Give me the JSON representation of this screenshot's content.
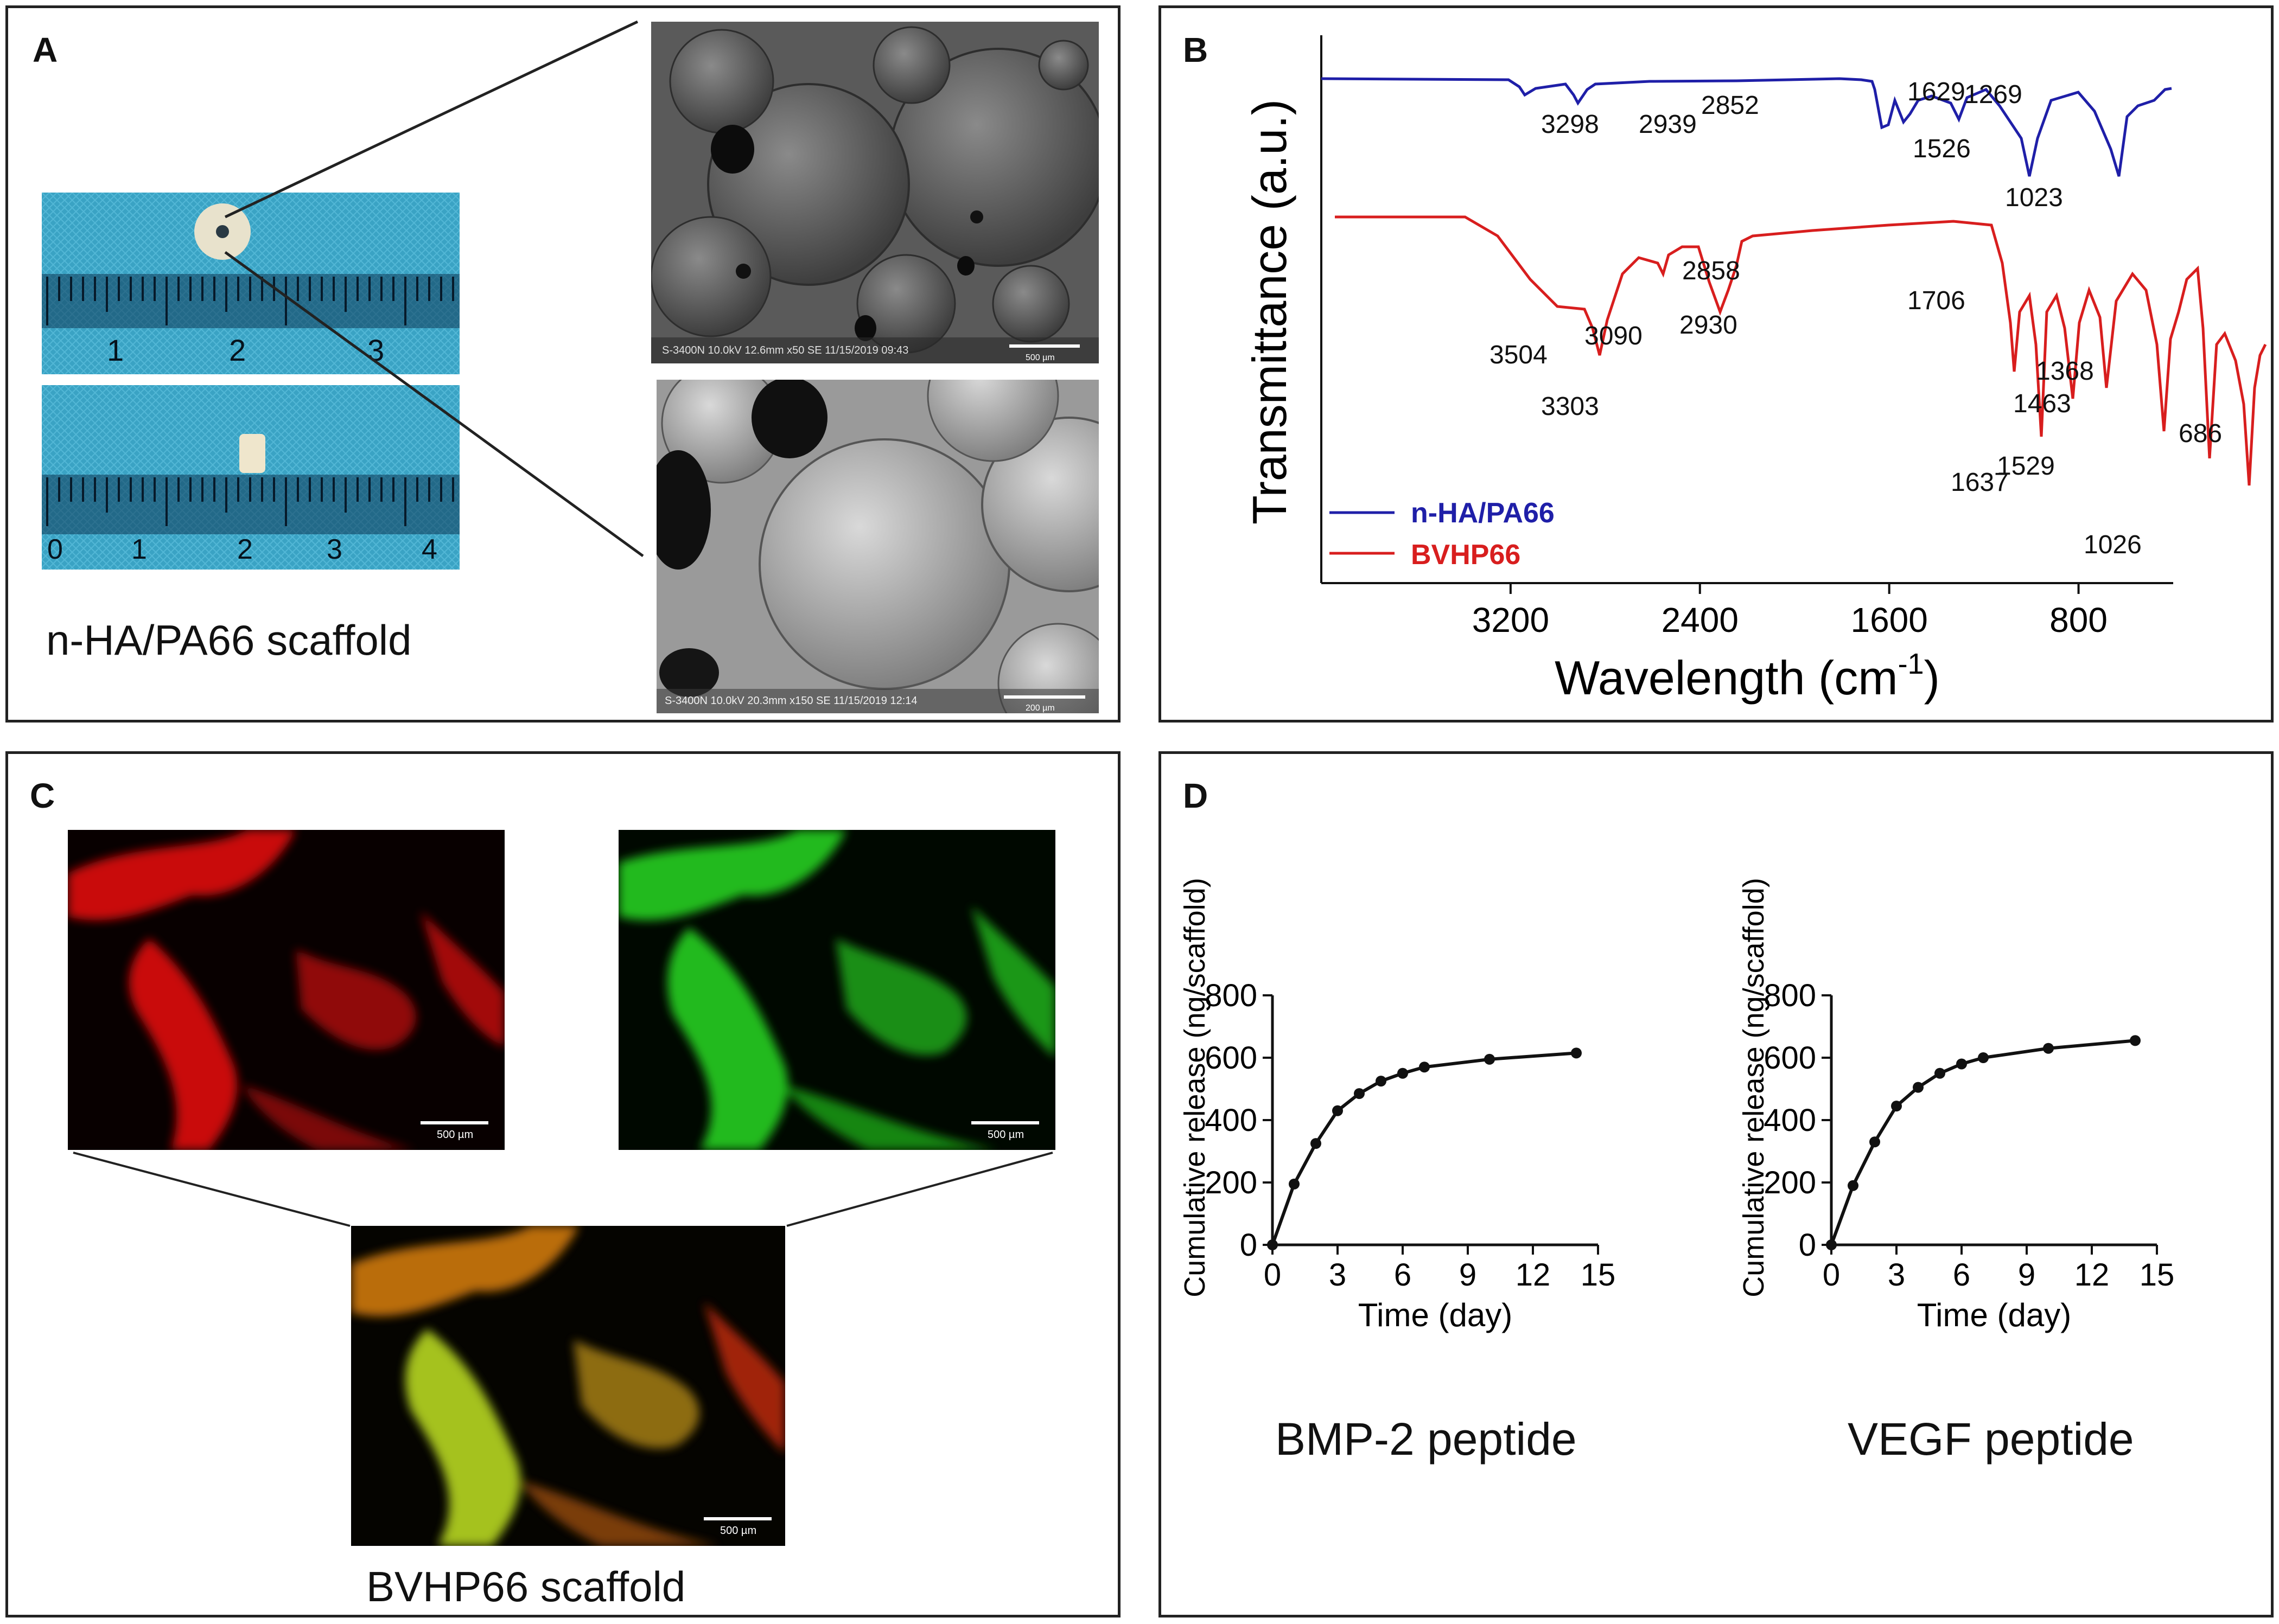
{
  "panels": {
    "a": {
      "label": "A",
      "caption": "n-HA/PA66 scaffold",
      "ruler_top_labels": [
        "1",
        "2",
        "3"
      ],
      "ruler_bottom_labels": [
        "0",
        "1",
        "2",
        "3",
        "4"
      ],
      "sem_top_text": "S-3400N 10.0kV 12.6mm x50 SE  11/15/2019 09:43",
      "sem_top_scale": "500 µm",
      "sem_bottom_text": "S-3400N 10.0kV 20.3mm x150 SE 11/15/2019 12:14",
      "sem_bottom_scale": "200 µm"
    },
    "b": {
      "label": "B"
    },
    "c": {
      "label": "C",
      "caption": "BVHP66 scaffold",
      "scale_red": "500 µm",
      "scale_green": "500 µm",
      "scale_merge": "500 µm"
    },
    "d": {
      "label": "D",
      "caption_left": "BMP-2 peptide",
      "caption_right": "VEGF peptide"
    }
  },
  "chart_data": [
    {
      "type": "line",
      "id": "ftir",
      "ylabel": "Transmittance (a.u.)",
      "xlabel": "Wavelength (cm",
      "xlabel_sup": "-1",
      "xlabel_close": ")",
      "x_reversed": true,
      "xlim": [
        4000,
        400
      ],
      "xticks": [
        3200,
        2400,
        1600,
        800
      ],
      "legend_position": "bottom-left",
      "series": [
        {
          "name": "n-HA/PA66",
          "color": "#1f1fa8",
          "peaks": [
            3298,
            2939,
            2852,
            1629,
            1526,
            1269,
            1023
          ],
          "peak_labels": [
            "3298",
            "2939",
            "2852",
            "1629",
            "1526",
            "1269",
            "1023"
          ]
        },
        {
          "name": "BVHP66",
          "color": "#d81e1e",
          "peaks": [
            3504,
            3303,
            3090,
            2930,
            2858,
            1706,
            1637,
            1529,
            1463,
            1368,
            1026,
            686
          ],
          "peak_labels": [
            "3504",
            "3303",
            "3090",
            "2930",
            "2858",
            "1706",
            "1637",
            "1529",
            "1463",
            "1368",
            "1026",
            "686"
          ]
        }
      ]
    },
    {
      "type": "line",
      "id": "release-bmp2",
      "xlabel": "Time (day)",
      "ylabel": "Cumulative release (ng/scaffold)",
      "xlim": [
        0,
        15
      ],
      "ylim": [
        0,
        800
      ],
      "xticks": [
        "0",
        "3",
        "6",
        "9",
        "12",
        "15"
      ],
      "yticks": [
        "0",
        "200",
        "400",
        "600",
        "800"
      ],
      "x": [
        0,
        1,
        2,
        3,
        4,
        5,
        6,
        7,
        10,
        14
      ],
      "y": [
        0,
        195,
        325,
        430,
        485,
        525,
        550,
        570,
        595,
        615
      ]
    },
    {
      "type": "line",
      "id": "release-vegf",
      "xlabel": "Time (day)",
      "ylabel": "Cumulative release (ng/scaffold)",
      "xlim": [
        0,
        15
      ],
      "ylim": [
        0,
        800
      ],
      "xticks": [
        "0",
        "3",
        "6",
        "9",
        "12",
        "15"
      ],
      "yticks": [
        "0",
        "200",
        "400",
        "600",
        "800"
      ],
      "x": [
        0,
        1,
        2,
        3,
        4,
        5,
        6,
        7,
        10,
        14
      ],
      "y": [
        0,
        190,
        330,
        445,
        505,
        550,
        580,
        600,
        630,
        655
      ]
    }
  ]
}
